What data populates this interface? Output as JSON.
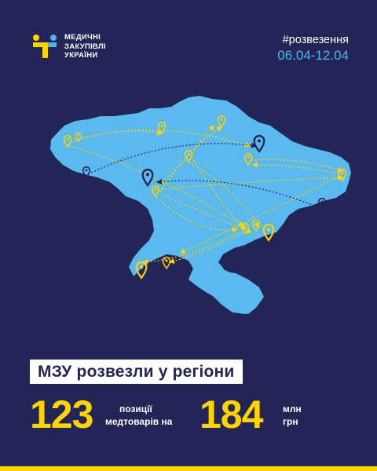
{
  "logo": {
    "line1": "МЕДИЧНІ",
    "line2": "ЗАКУПІВЛІ",
    "line3": "УКРАЇНИ",
    "colors": {
      "yellow": "#fed503",
      "blue": "#4fb5ec"
    }
  },
  "header": {
    "hashtag": "#розвезення",
    "dates": "06.04-12.04"
  },
  "map": {
    "icon": "ukraine-map",
    "colors": {
      "land": "#5ab9ef",
      "route": "#fed503",
      "dark_route": "#232557",
      "pin_yellow": "#fed503",
      "pin_dark": "#232557"
    }
  },
  "title": "МЗУ розвезли у регіони",
  "stats": {
    "positions_value": "123",
    "positions_label_1": "позиції",
    "positions_label_2": "медтоварів на",
    "amount_value": "184",
    "amount_unit_1": "млн",
    "amount_unit_2": "грн"
  },
  "colors": {
    "background": "#232557",
    "accent": "#fed503",
    "text": "#ffffff"
  }
}
